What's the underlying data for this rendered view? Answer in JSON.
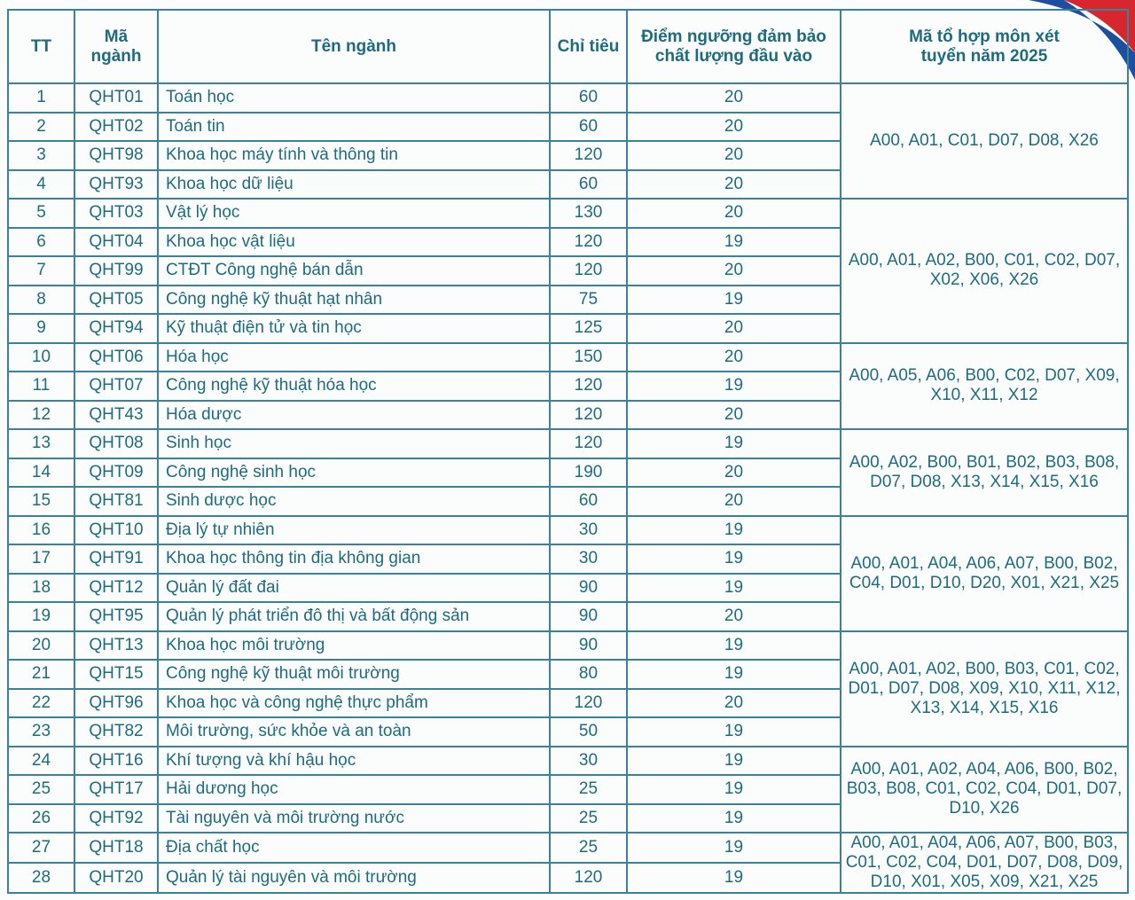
{
  "headers": {
    "tt": "TT",
    "code": "Mã ngành",
    "name": "Tên ngành",
    "quota": "Chỉ tiêu",
    "threshold": "Điểm ngưỡng đảm bảo chất lượng đầu vào",
    "combos": "Mã tổ hợp môn xét tuyển năm 2025"
  },
  "rows": [
    {
      "tt": "1",
      "code": "QHT01",
      "name": "Toán học",
      "quota": "60",
      "threshold": "20"
    },
    {
      "tt": "2",
      "code": "QHT02",
      "name": "Toán tin",
      "quota": "60",
      "threshold": "20"
    },
    {
      "tt": "3",
      "code": "QHT98",
      "name": "Khoa học máy tính và thông tin",
      "quota": "120",
      "threshold": "20"
    },
    {
      "tt": "4",
      "code": "QHT93",
      "name": "Khoa học dữ liệu",
      "quota": "60",
      "threshold": "20"
    },
    {
      "tt": "5",
      "code": "QHT03",
      "name": "Vật lý học",
      "quota": "130",
      "threshold": "20"
    },
    {
      "tt": "6",
      "code": "QHT04",
      "name": "Khoa học vật liệu",
      "quota": "120",
      "threshold": "19"
    },
    {
      "tt": "7",
      "code": "QHT99",
      "name": "CTĐT Công nghệ bán dẫn",
      "quota": "120",
      "threshold": "20"
    },
    {
      "tt": "8",
      "code": "QHT05",
      "name": "Công nghệ kỹ thuật hạt nhân",
      "quota": "75",
      "threshold": "19"
    },
    {
      "tt": "9",
      "code": "QHT94",
      "name": "Kỹ thuật điện tử và tin học",
      "quota": "125",
      "threshold": "20"
    },
    {
      "tt": "10",
      "code": "QHT06",
      "name": "Hóa học",
      "quota": "150",
      "threshold": "20"
    },
    {
      "tt": "11",
      "code": "QHT07",
      "name": "Công nghệ kỹ thuật hóa học",
      "quota": "120",
      "threshold": "19"
    },
    {
      "tt": "12",
      "code": "QHT43",
      "name": "Hóa dược",
      "quota": "120",
      "threshold": "20"
    },
    {
      "tt": "13",
      "code": "QHT08",
      "name": "Sinh học",
      "quota": "120",
      "threshold": "19"
    },
    {
      "tt": "14",
      "code": "QHT09",
      "name": "Công nghệ sinh học",
      "quota": "190",
      "threshold": "20"
    },
    {
      "tt": "15",
      "code": "QHT81",
      "name": "Sinh dược học",
      "quota": "60",
      "threshold": "20"
    },
    {
      "tt": "16",
      "code": "QHT10",
      "name": "Địa lý tự nhiên",
      "quota": "30",
      "threshold": "19"
    },
    {
      "tt": "17",
      "code": "QHT91",
      "name": "Khoa học thông tin địa không gian",
      "quota": "30",
      "threshold": "19"
    },
    {
      "tt": "18",
      "code": "QHT12",
      "name": "Quản lý đất đai",
      "quota": "90",
      "threshold": "19"
    },
    {
      "tt": "19",
      "code": "QHT95",
      "name": "Quản lý phát triển đô thị và bất động sản",
      "quota": "90",
      "threshold": "20"
    },
    {
      "tt": "20",
      "code": "QHT13",
      "name": "Khoa học môi trường",
      "quota": "90",
      "threshold": "19"
    },
    {
      "tt": "21",
      "code": "QHT15",
      "name": "Công nghệ kỹ thuật môi trường",
      "quota": "80",
      "threshold": "19"
    },
    {
      "tt": "22",
      "code": "QHT96",
      "name": "Khoa học và công nghệ thực phẩm",
      "quota": "120",
      "threshold": "20"
    },
    {
      "tt": "23",
      "code": "QHT82",
      "name": "Môi trường, sức khỏe và an toàn",
      "quota": "50",
      "threshold": "19"
    },
    {
      "tt": "24",
      "code": "QHT16",
      "name": "Khí tượng và khí hậu học",
      "quota": "30",
      "threshold": "19"
    },
    {
      "tt": "25",
      "code": "QHT17",
      "name": "Hải dương học",
      "quota": "25",
      "threshold": "19"
    },
    {
      "tt": "26",
      "code": "QHT92",
      "name": "Tài nguyên và môi trường nước",
      "quota": "25",
      "threshold": "19"
    },
    {
      "tt": "27",
      "code": "QHT18",
      "name": "Địa chất học",
      "quota": "25",
      "threshold": "19"
    },
    {
      "tt": "28",
      "code": "QHT20",
      "name": "Quản lý tài nguyên và môi trường",
      "quota": "120",
      "threshold": "19"
    }
  ],
  "combo_groups": [
    {
      "span": 4,
      "text": "A00, A01, C01, D07, D08, X26"
    },
    {
      "span": 5,
      "text": "A00, A01, A02, B00, C01, C02, D07, X02, X06, X26"
    },
    {
      "span": 3,
      "text": "A00, A05, A06, B00, C02, D07, X09, X10, X11, X12"
    },
    {
      "span": 3,
      "text": "A00, A02, B00, B01, B02, B03, B08, D07, D08, X13, X14, X15, X16"
    },
    {
      "span": 4,
      "text": "A00, A01, A04, A06, A07, B00, B02, C04, D01, D10, D20, X01, X21, X25"
    },
    {
      "span": 4,
      "text": "A00, A01, A02, B00, B03, C01, C02, D01, D07, D08, X09, X10, X11, X12, X13, X14, X15, X16"
    },
    {
      "span": 3,
      "text": "A00, A01, A02, A04, A06, B00, B02, B03, B08, C01, C02, C04, D01, D07, D10, X26"
    },
    {
      "span": 2,
      "text": "A00, A01, A04, A06, A07, B00, B03, C01, C02, C04, D01, D07, D08, D09, D10, X01, X05, X09, X21, X25"
    }
  ],
  "colors": {
    "text": "#1e6b7d",
    "border": "#3a8298",
    "accent_red": "#d8262f",
    "accent_blue": "#1d4fa0"
  }
}
